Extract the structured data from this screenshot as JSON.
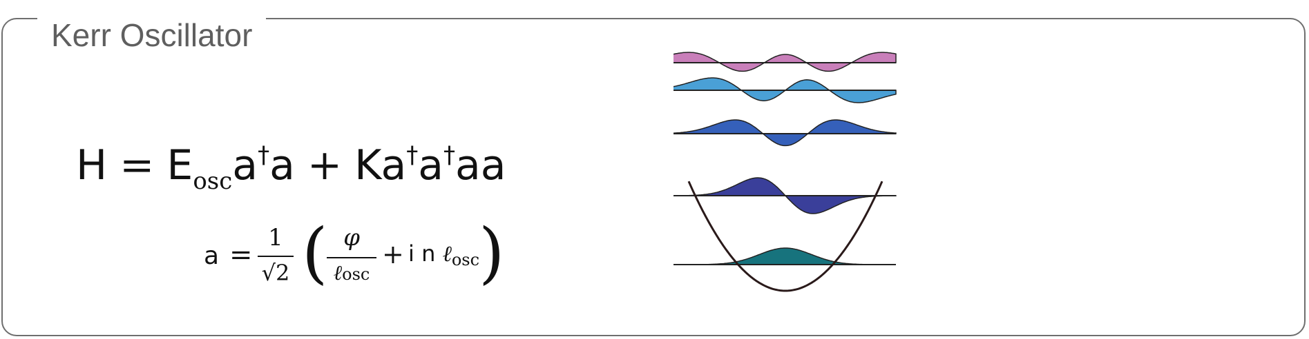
{
  "panel": {
    "title": "Kerr Oscillator"
  },
  "hamiltonian": {
    "h": "H",
    "eq": "=",
    "e": "E",
    "e_sub": "osc",
    "term1_a": "a",
    "dagger": "†",
    "term1_b": "a",
    "plus": "+",
    "k": "K",
    "term2_a": "a",
    "term2_b": "a",
    "term2_tail": "aa"
  },
  "ladder": {
    "lhs": "a",
    "eq": "=",
    "num1": "1",
    "den1": "√2",
    "paren_open": "(",
    "num2": "φ",
    "den2_ell": "ℓ",
    "den2_sub": "osc",
    "plus": "+",
    "in_text": "i n ",
    "ell": "ℓ",
    "ell_sub": "osc",
    "paren_close": ")"
  },
  "diagram": {
    "levels": [
      {
        "name": "level-0",
        "color": "#17737d"
      },
      {
        "name": "level-1",
        "color": "#3a3f9a"
      },
      {
        "name": "level-2",
        "color": "#3560ba"
      },
      {
        "name": "level-3",
        "color": "#4aa0d6"
      },
      {
        "name": "level-4",
        "color": "#c97fba"
      }
    ],
    "well_color": "#2a1a1a"
  }
}
